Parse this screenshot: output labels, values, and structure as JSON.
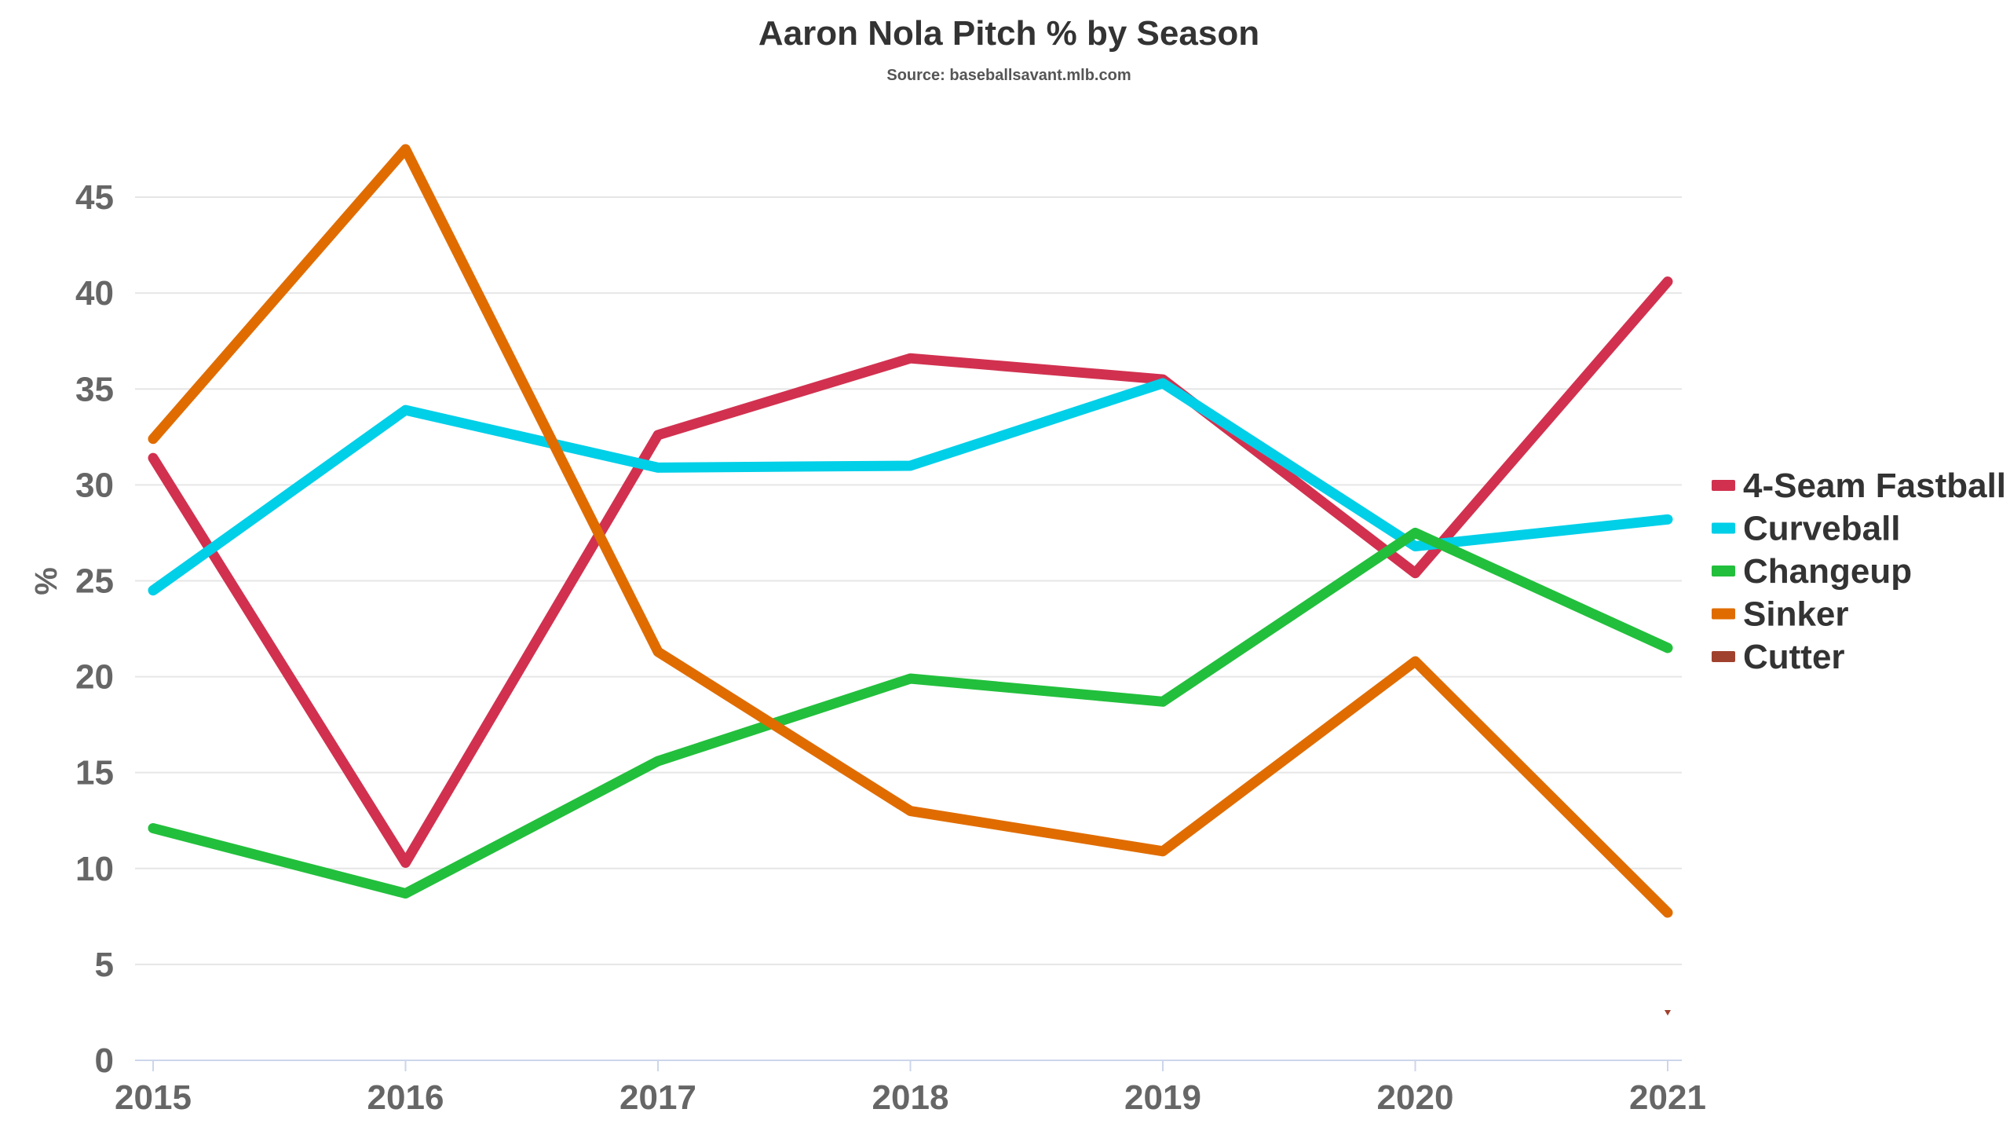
{
  "chart_data": {
    "type": "line",
    "title": "Aaron Nola Pitch % by Season",
    "subtitle": "Source: baseballsavant.mlb.com",
    "xlabel": "",
    "ylabel": "%",
    "x": [
      "2015",
      "2016",
      "2017",
      "2018",
      "2019",
      "2020",
      "2021"
    ],
    "ylim": [
      0,
      47.5
    ],
    "yticks": [
      "0",
      "5",
      "10",
      "15",
      "20",
      "25",
      "30",
      "35",
      "40",
      "45"
    ],
    "grid": true,
    "legend_position": "right",
    "series": [
      {
        "name": "4-Seam Fastball",
        "color": "#d1314f",
        "values": [
          31.4,
          10.3,
          32.6,
          36.6,
          35.5,
          25.4,
          40.6
        ]
      },
      {
        "name": "Curveball",
        "color": "#00cfe8",
        "values": [
          24.5,
          33.9,
          30.9,
          31.0,
          35.3,
          26.8,
          28.2
        ]
      },
      {
        "name": "Changeup",
        "color": "#22bf3c",
        "values": [
          12.1,
          8.7,
          15.6,
          19.9,
          18.7,
          27.5,
          21.5
        ]
      },
      {
        "name": "Sinker",
        "color": "#e06c00",
        "values": [
          32.4,
          47.5,
          21.3,
          13.0,
          10.9,
          20.8,
          7.7
        ]
      },
      {
        "name": "Cutter",
        "color": "#a0412d",
        "values": [
          null,
          null,
          null,
          null,
          null,
          null,
          2.5
        ]
      }
    ]
  }
}
